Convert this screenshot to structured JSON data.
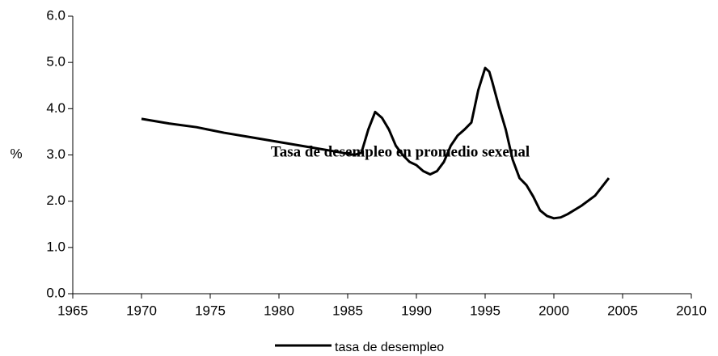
{
  "chart_data": {
    "type": "line",
    "title": "Tasa de desempleo en promedio sexenal",
    "y_label": "%",
    "x": [
      1970,
      1972,
      1974,
      1976,
      1978,
      1980,
      1982,
      1984,
      1985.5,
      1986,
      1986.5,
      1987,
      1987.5,
      1988,
      1988.5,
      1989,
      1989.5,
      1990,
      1990.5,
      1991,
      1991.5,
      1992,
      1992.5,
      1993,
      1993.5,
      1994,
      1994.5,
      1995,
      1995.3,
      1995.5,
      1996,
      1996.5,
      1997,
      1997.5,
      1998,
      1998.5,
      1999,
      1999.5,
      2000,
      2000.5,
      2001,
      2002,
      2003,
      2004
    ],
    "series": [
      {
        "name": "tasa de desempleo",
        "color": "#000000",
        "values": [
          3.78,
          3.68,
          3.6,
          3.48,
          3.38,
          3.28,
          3.18,
          3.08,
          3.0,
          3.05,
          3.55,
          3.93,
          3.8,
          3.55,
          3.2,
          3.0,
          2.85,
          2.78,
          2.65,
          2.58,
          2.65,
          2.85,
          3.2,
          3.42,
          3.55,
          3.7,
          4.4,
          4.88,
          4.8,
          4.6,
          4.05,
          3.55,
          2.9,
          2.5,
          2.35,
          2.1,
          1.8,
          1.68,
          1.63,
          1.65,
          1.72,
          1.9,
          2.12,
          2.5
        ]
      }
    ],
    "xlim": [
      1965,
      2010
    ],
    "xticks": [
      1965,
      1970,
      1975,
      1980,
      1985,
      1990,
      1995,
      2000,
      2005,
      2010
    ],
    "ylim": [
      0,
      6
    ],
    "yticks": [
      {
        "value": 0,
        "label": "0.0"
      },
      {
        "value": 1,
        "label": "1.0"
      },
      {
        "value": 2,
        "label": "2.0"
      },
      {
        "value": 3,
        "label": "3.0"
      },
      {
        "value": 4,
        "label": "4.0"
      },
      {
        "value": 5,
        "label": "5.0"
      },
      {
        "value": 6,
        "label": "6.0"
      }
    ],
    "grid": false,
    "legend": "bottom"
  }
}
